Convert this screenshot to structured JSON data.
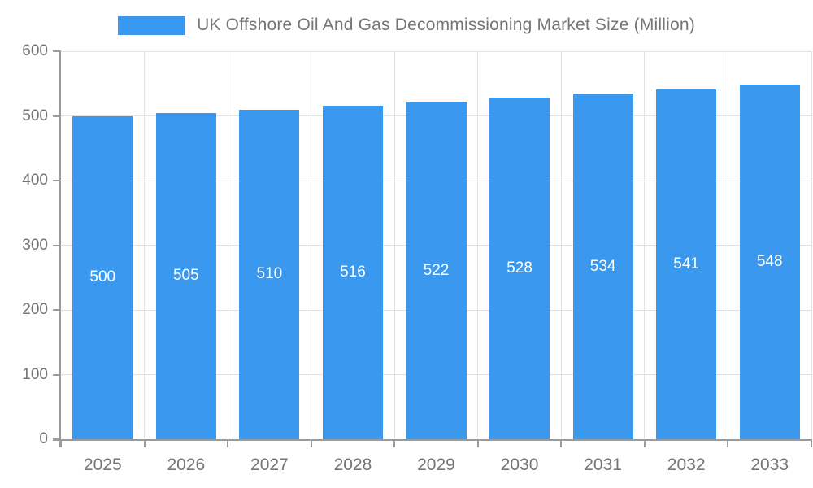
{
  "legend": {
    "label": "UK Offshore Oil And Gas Decommissioning Market Size (Million)",
    "swatch_color": "#3a99ee",
    "position": "top"
  },
  "chart_data": {
    "type": "bar",
    "title": "UK Offshore Oil And Gas Decommissioning Market Size (Million)",
    "categories": [
      "2025",
      "2026",
      "2027",
      "2028",
      "2029",
      "2030",
      "2031",
      "2032",
      "2033"
    ],
    "values": [
      500,
      505,
      510,
      516,
      522,
      528,
      534,
      541,
      548
    ],
    "xlabel": "",
    "ylabel": "",
    "ylim": [
      0,
      600
    ],
    "y_ticks": [
      0,
      100,
      200,
      300,
      400,
      500,
      600
    ],
    "grid": true,
    "legend_position": "top",
    "value_labels": "centered-in-bar"
  },
  "colors": {
    "bar": "#3a99ee",
    "grid": "#e2e2e2",
    "axis": "#9b9b9b",
    "text": "#757575",
    "value_label": "#ffffff",
    "background": "#ffffff"
  }
}
